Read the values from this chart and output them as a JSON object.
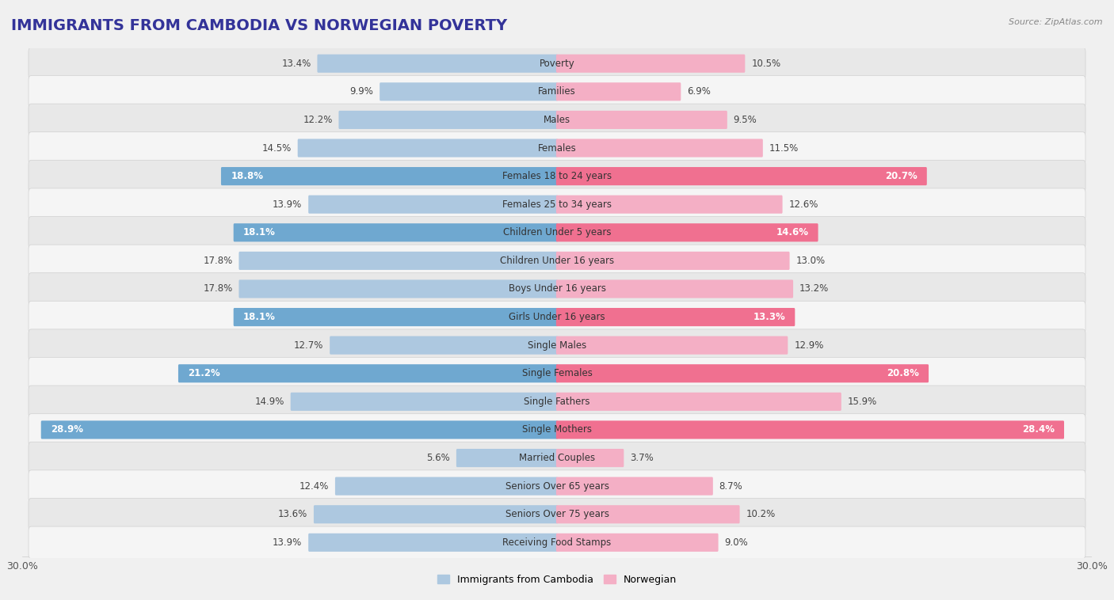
{
  "title": "IMMIGRANTS FROM CAMBODIA VS NORWEGIAN POVERTY",
  "source": "Source: ZipAtlas.com",
  "categories": [
    "Poverty",
    "Families",
    "Males",
    "Females",
    "Females 18 to 24 years",
    "Females 25 to 34 years",
    "Children Under 5 years",
    "Children Under 16 years",
    "Boys Under 16 years",
    "Girls Under 16 years",
    "Single Males",
    "Single Females",
    "Single Fathers",
    "Single Mothers",
    "Married Couples",
    "Seniors Over 65 years",
    "Seniors Over 75 years",
    "Receiving Food Stamps"
  ],
  "cambodia_values": [
    13.4,
    9.9,
    12.2,
    14.5,
    18.8,
    13.9,
    18.1,
    17.8,
    17.8,
    18.1,
    12.7,
    21.2,
    14.9,
    28.9,
    5.6,
    12.4,
    13.6,
    13.9
  ],
  "norwegian_values": [
    10.5,
    6.9,
    9.5,
    11.5,
    20.7,
    12.6,
    14.6,
    13.0,
    13.2,
    13.3,
    12.9,
    20.8,
    15.9,
    28.4,
    3.7,
    8.7,
    10.2,
    9.0
  ],
  "cambodia_color": "#adc8e0",
  "norwegian_color": "#f4afc5",
  "cambodia_highlight_color": "#6fa8d0",
  "norwegian_highlight_color": "#f07090",
  "highlight_rows": [
    4,
    6,
    9,
    11,
    13
  ],
  "xlim": 30.0,
  "bar_height": 0.55,
  "background_color": "#f0f0f0",
  "row_bg_odd": "#f5f5f5",
  "row_bg_even": "#e8e8e8",
  "row_border_color": "#d0d0d0",
  "label_fontsize": 8.5,
  "value_fontsize": 8.5,
  "title_fontsize": 14
}
